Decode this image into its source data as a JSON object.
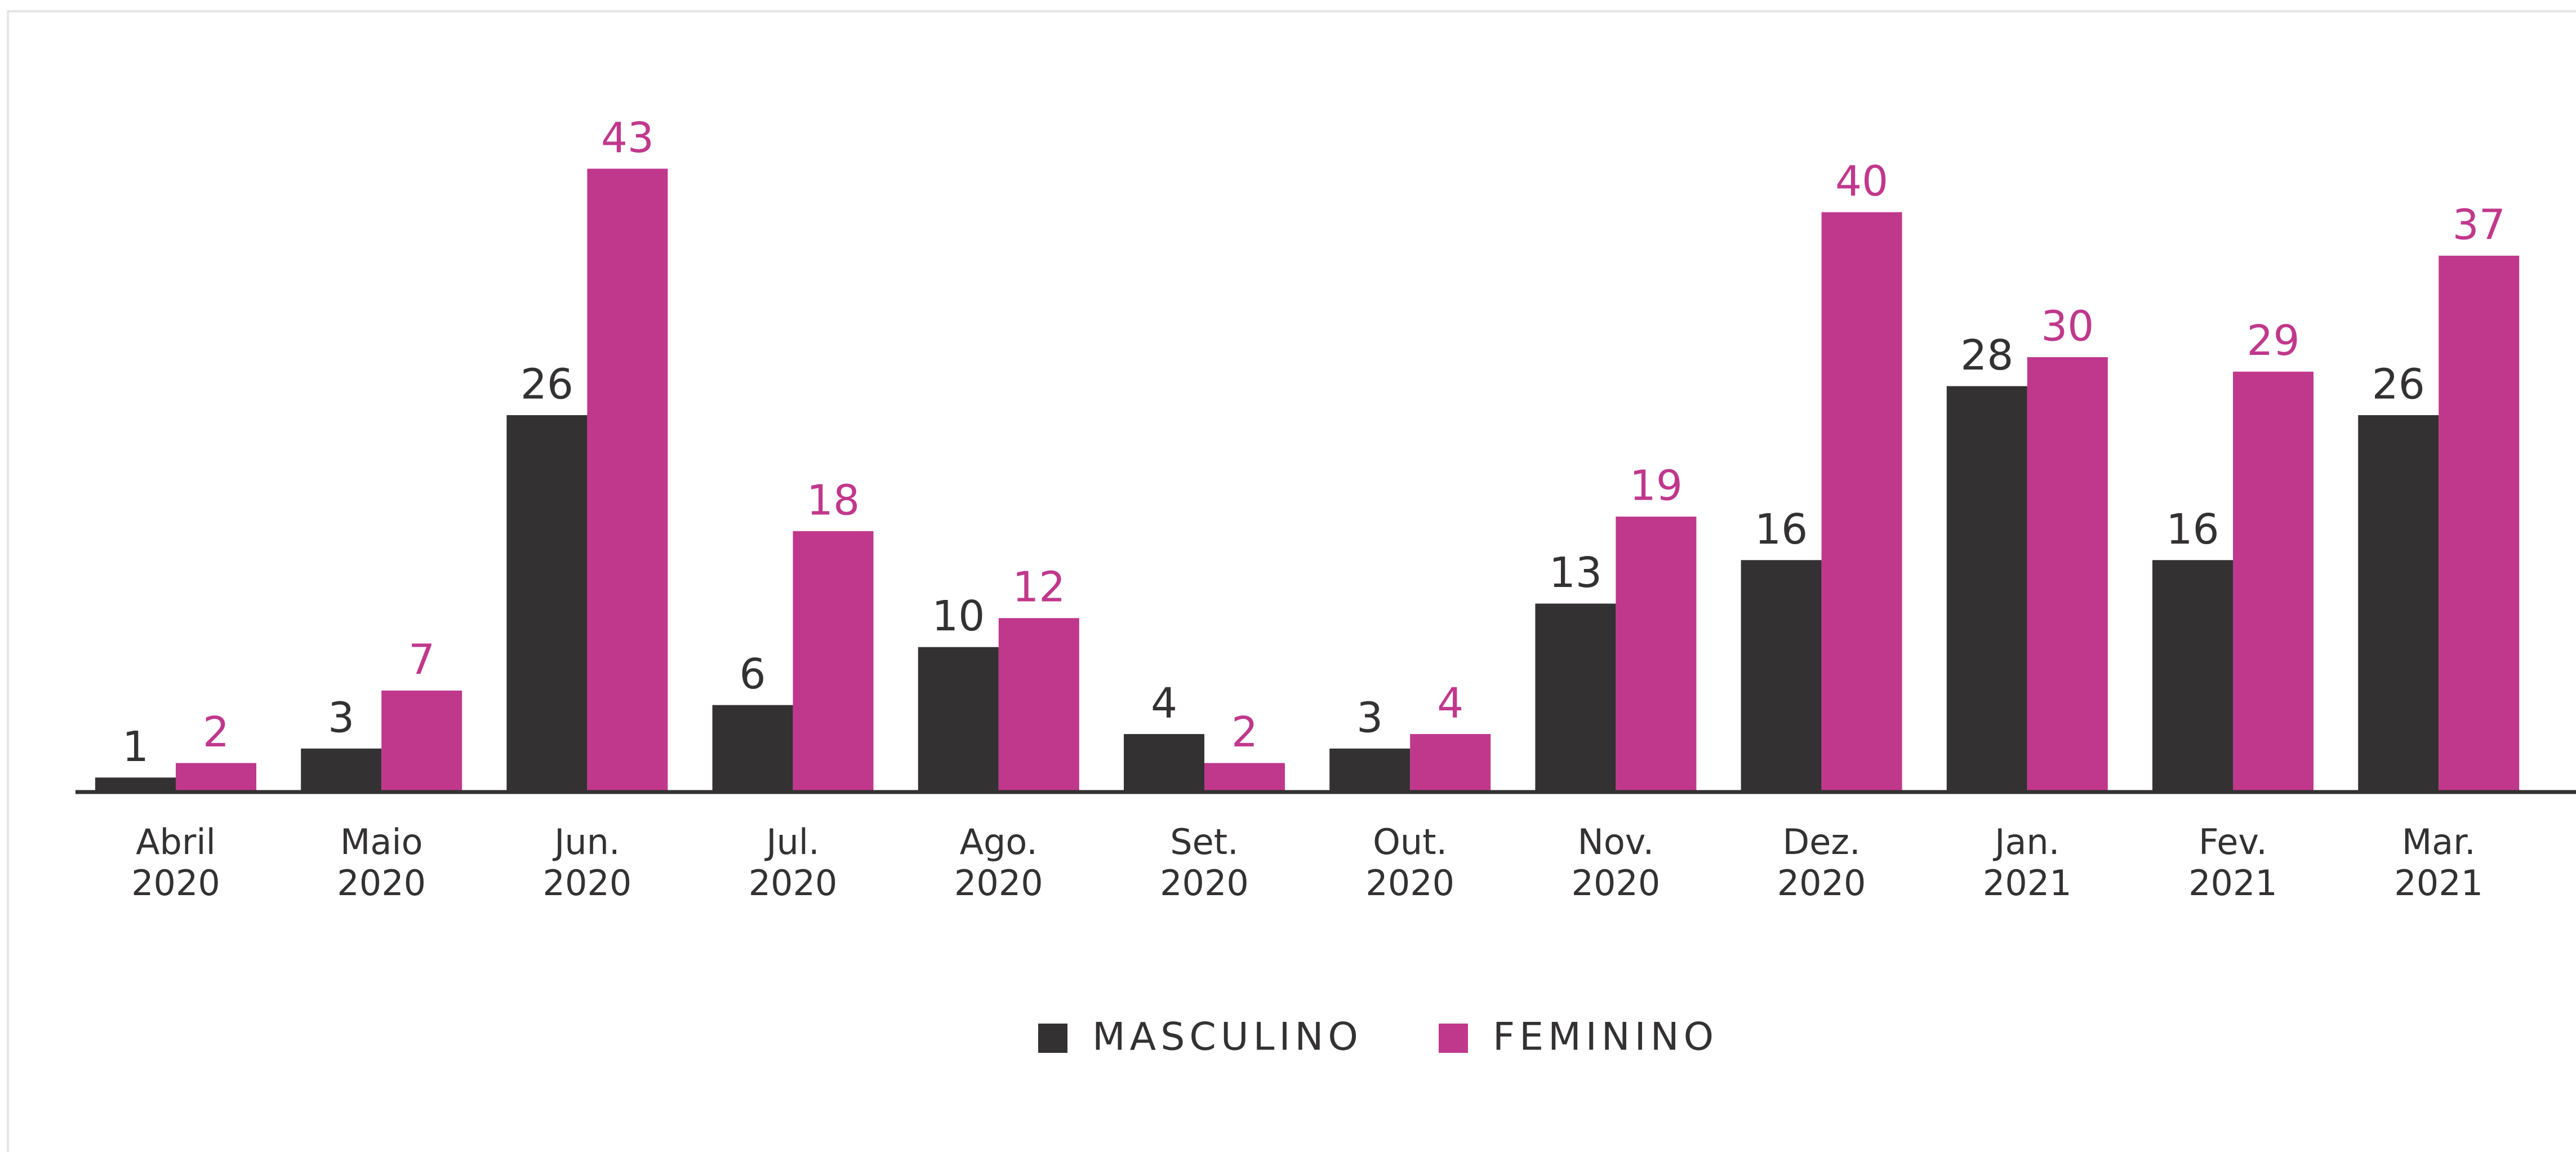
{
  "chart_data": {
    "type": "bar",
    "categories": [
      [
        "Abril",
        "2020"
      ],
      [
        "Maio",
        "2020"
      ],
      [
        "Jun.",
        "2020"
      ],
      [
        "Jul.",
        "2020"
      ],
      [
        "Ago.",
        "2020"
      ],
      [
        "Set.",
        "2020"
      ],
      [
        "Out.",
        "2020"
      ],
      [
        "Nov.",
        "2020"
      ],
      [
        "Dez.",
        "2020"
      ],
      [
        "Jan.",
        "2021"
      ],
      [
        "Fev.",
        "2021"
      ],
      [
        "Mar.",
        "2021"
      ]
    ],
    "series": [
      {
        "name": "MASCULINO",
        "color": "#333132",
        "values": [
          1,
          3,
          26,
          6,
          10,
          4,
          3,
          13,
          16,
          28,
          16,
          26
        ]
      },
      {
        "name": "FEMININO",
        "color": "#c0388c",
        "values": [
          2,
          7,
          43,
          18,
          12,
          2,
          4,
          19,
          40,
          30,
          29,
          37
        ]
      }
    ],
    "ylim": [
      0,
      45
    ]
  }
}
